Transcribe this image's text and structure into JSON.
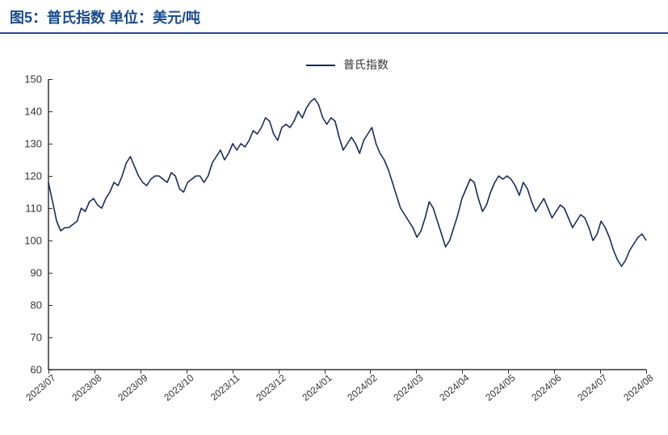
{
  "title": "图5：普氏指数  单位：美元/吨",
  "chart": {
    "type": "line",
    "legend_label": "普氏指数",
    "line_color": "#1a2b5c",
    "line_width": 1.6,
    "background_color": "#ffffff",
    "axis_color": "#333333",
    "tick_fontsize": 13,
    "title_color": "#1a4b8c",
    "title_fontsize": 18,
    "ylim": [
      60,
      150
    ],
    "ytick_step": 10,
    "yticks": [
      60,
      70,
      80,
      90,
      100,
      110,
      120,
      130,
      140,
      150
    ],
    "xticks": [
      "2023/07",
      "2023/08",
      "2023/09",
      "2023/10",
      "2023/11",
      "2023/12",
      "2024/01",
      "2024/02",
      "2024/03",
      "2024/04",
      "2024/05",
      "2024/06",
      "2024/07",
      "2024/08"
    ],
    "xtick_rotation_deg": -40,
    "series": [
      {
        "name": "普氏指数",
        "color": "#1a2b5c",
        "values": [
          118,
          112,
          106,
          103,
          104,
          104,
          105,
          106,
          110,
          109,
          112,
          113,
          111,
          110,
          113,
          115,
          118,
          117,
          120,
          124,
          126,
          123,
          120,
          118,
          117,
          119,
          120,
          120,
          119,
          118,
          121,
          120,
          116,
          115,
          118,
          119,
          120,
          120,
          118,
          120,
          124,
          126,
          128,
          125,
          127,
          130,
          128,
          130,
          129,
          131,
          134,
          133,
          135,
          138,
          137,
          133,
          131,
          135,
          136,
          135,
          137,
          140,
          138,
          141,
          143,
          144,
          142,
          138,
          136,
          138,
          137,
          132,
          128,
          130,
          132,
          130,
          127,
          131,
          133,
          135,
          130,
          127,
          125,
          122,
          118,
          114,
          110,
          108,
          106,
          104,
          101,
          103,
          107,
          112,
          110,
          106,
          102,
          98,
          100,
          104,
          108,
          113,
          116,
          119,
          118,
          113,
          109,
          111,
          115,
          118,
          120,
          119,
          120,
          119,
          117,
          114,
          118,
          116,
          112,
          109,
          111,
          113,
          110,
          107,
          109,
          111,
          110,
          107,
          104,
          106,
          108,
          107,
          104,
          100,
          102,
          106,
          104,
          101,
          97,
          94,
          92,
          94,
          97,
          99,
          101,
          102,
          100
        ]
      }
    ]
  }
}
